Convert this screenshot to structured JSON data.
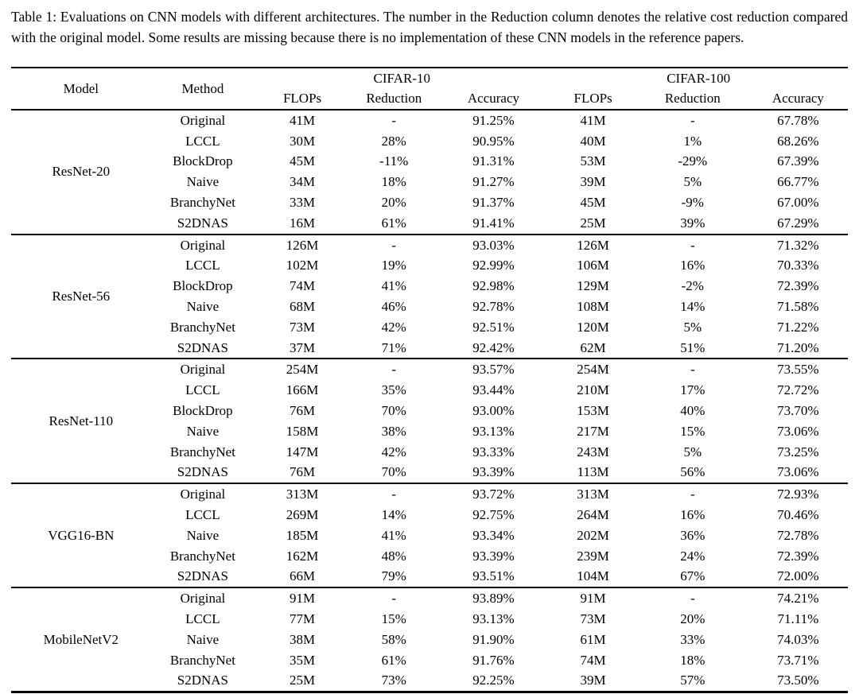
{
  "caption": "Table 1: Evaluations on CNN models with different architectures. The number in the Reduction column denotes the relative cost reduction compared with the original model. Some results are missing because there is no implementation of these CNN models in the reference papers.",
  "table": {
    "headers": {
      "model": "Model",
      "method": "Method",
      "group1": "CIFAR-10",
      "group2": "CIFAR-100",
      "sub": [
        "FLOPs",
        "Reduction",
        "Accuracy"
      ]
    },
    "groups": [
      {
        "model": "ResNet-20",
        "rows": [
          {
            "method": "Original",
            "cells": [
              "41M",
              "-",
              "91.25%",
              "41M",
              "-",
              "67.78%"
            ]
          },
          {
            "method": "LCCL",
            "cells": [
              "30M",
              "28%",
              "90.95%",
              "40M",
              "1%",
              "68.26%"
            ]
          },
          {
            "method": "BlockDrop",
            "cells": [
              "45M",
              "-11%",
              "91.31%",
              "53M",
              "-29%",
              "67.39%"
            ]
          },
          {
            "method": "Naive",
            "cells": [
              "34M",
              "18%",
              "91.27%",
              "39M",
              "5%",
              "66.77%"
            ]
          },
          {
            "method": "BranchyNet",
            "cells": [
              "33M",
              "20%",
              "91.37%",
              "45M",
              "-9%",
              "67.00%"
            ]
          },
          {
            "method": "S2DNAS",
            "cells": [
              "16M",
              "61%",
              "91.41%",
              "25M",
              "39%",
              "67.29%"
            ]
          }
        ]
      },
      {
        "model": "ResNet-56",
        "rows": [
          {
            "method": "Original",
            "cells": [
              "126M",
              "-",
              "93.03%",
              "126M",
              "-",
              "71.32%"
            ]
          },
          {
            "method": "LCCL",
            "cells": [
              "102M",
              "19%",
              "92.99%",
              "106M",
              "16%",
              "70.33%"
            ]
          },
          {
            "method": "BlockDrop",
            "cells": [
              "74M",
              "41%",
              "92.98%",
              "129M",
              "-2%",
              "72.39%"
            ]
          },
          {
            "method": "Naive",
            "cells": [
              "68M",
              "46%",
              "92.78%",
              "108M",
              "14%",
              "71.58%"
            ]
          },
          {
            "method": "BranchyNet",
            "cells": [
              "73M",
              "42%",
              "92.51%",
              "120M",
              "5%",
              "71.22%"
            ]
          },
          {
            "method": "S2DNAS",
            "cells": [
              "37M",
              "71%",
              "92.42%",
              "62M",
              "51%",
              "71.20%"
            ]
          }
        ]
      },
      {
        "model": "ResNet-110",
        "rows": [
          {
            "method": "Original",
            "cells": [
              "254M",
              "-",
              "93.57%",
              "254M",
              "-",
              "73.55%"
            ]
          },
          {
            "method": "LCCL",
            "cells": [
              "166M",
              "35%",
              "93.44%",
              "210M",
              "17%",
              "72.72%"
            ]
          },
          {
            "method": "BlockDrop",
            "cells": [
              "76M",
              "70%",
              "93.00%",
              "153M",
              "40%",
              "73.70%"
            ]
          },
          {
            "method": "Naive",
            "cells": [
              "158M",
              "38%",
              "93.13%",
              "217M",
              "15%",
              "73.06%"
            ]
          },
          {
            "method": "BranchyNet",
            "cells": [
              "147M",
              "42%",
              "93.33%",
              "243M",
              "5%",
              "73.25%"
            ]
          },
          {
            "method": "S2DNAS",
            "cells": [
              "76M",
              "70%",
              "93.39%",
              "113M",
              "56%",
              "73.06%"
            ]
          }
        ]
      },
      {
        "model": "VGG16-BN",
        "rows": [
          {
            "method": "Original",
            "cells": [
              "313M",
              "-",
              "93.72%",
              "313M",
              "-",
              "72.93%"
            ]
          },
          {
            "method": "LCCL",
            "cells": [
              "269M",
              "14%",
              "92.75%",
              "264M",
              "16%",
              "70.46%"
            ]
          },
          {
            "method": "Naive",
            "cells": [
              "185M",
              "41%",
              "93.34%",
              "202M",
              "36%",
              "72.78%"
            ]
          },
          {
            "method": "BranchyNet",
            "cells": [
              "162M",
              "48%",
              "93.39%",
              "239M",
              "24%",
              "72.39%"
            ]
          },
          {
            "method": "S2DNAS",
            "cells": [
              "66M",
              "79%",
              "93.51%",
              "104M",
              "67%",
              "72.00%"
            ]
          }
        ]
      },
      {
        "model": "MobileNetV2",
        "rows": [
          {
            "method": "Original",
            "cells": [
              "91M",
              "-",
              "93.89%",
              "91M",
              "-",
              "74.21%"
            ]
          },
          {
            "method": "LCCL",
            "cells": [
              "77M",
              "15%",
              "93.13%",
              "73M",
              "20%",
              "71.11%"
            ]
          },
          {
            "method": "Naive",
            "cells": [
              "38M",
              "58%",
              "91.90%",
              "61M",
              "33%",
              "74.03%"
            ]
          },
          {
            "method": "BranchyNet",
            "cells": [
              "35M",
              "61%",
              "91.76%",
              "74M",
              "18%",
              "73.71%"
            ]
          },
          {
            "method": "S2DNAS",
            "cells": [
              "25M",
              "73%",
              "92.25%",
              "39M",
              "57%",
              "73.50%"
            ]
          }
        ]
      }
    ]
  }
}
